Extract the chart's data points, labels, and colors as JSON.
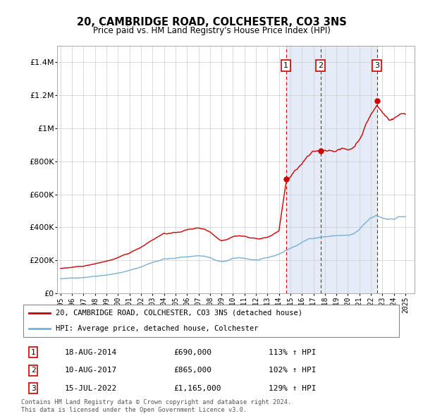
{
  "title": "20, CAMBRIDGE ROAD, COLCHESTER, CO3 3NS",
  "subtitle": "Price paid vs. HM Land Registry's House Price Index (HPI)",
  "footer": "Contains HM Land Registry data © Crown copyright and database right 2024.\nThis data is licensed under the Open Government Licence v3.0.",
  "legend_line1": "20, CAMBRIDGE ROAD, COLCHESTER, CO3 3NS (detached house)",
  "legend_line2": "HPI: Average price, detached house, Colchester",
  "sale_color": "#cc0000",
  "hpi_color": "#7bafd4",
  "background_shading": "#dce8f5",
  "vertical_line_color": "#cc0000",
  "ylim": [
    0,
    1500000
  ],
  "yticks": [
    0,
    200000,
    400000,
    600000,
    800000,
    1000000,
    1200000,
    1400000
  ],
  "ytick_labels": [
    "£0",
    "£200K",
    "£400K",
    "£600K",
    "£800K",
    "£1M",
    "£1.2M",
    "£1.4M"
  ],
  "sale_points": [
    {
      "label": "1",
      "date": "18-AUG-2014",
      "price": 690000,
      "year": 2014.62
    },
    {
      "label": "2",
      "date": "10-AUG-2017",
      "price": 865000,
      "year": 2017.62
    },
    {
      "label": "3",
      "date": "15-JUL-2022",
      "price": 1165000,
      "year": 2022.54
    }
  ],
  "shade_x1": 2014.62,
  "shade_x2": 2022.54,
  "xlim": [
    1994.7,
    2025.8
  ],
  "xticks": [
    1995,
    1996,
    1997,
    1998,
    1999,
    2000,
    2001,
    2002,
    2003,
    2004,
    2005,
    2006,
    2007,
    2008,
    2009,
    2010,
    2011,
    2012,
    2013,
    2014,
    2015,
    2016,
    2017,
    2018,
    2019,
    2020,
    2021,
    2022,
    2023,
    2024,
    2025
  ]
}
